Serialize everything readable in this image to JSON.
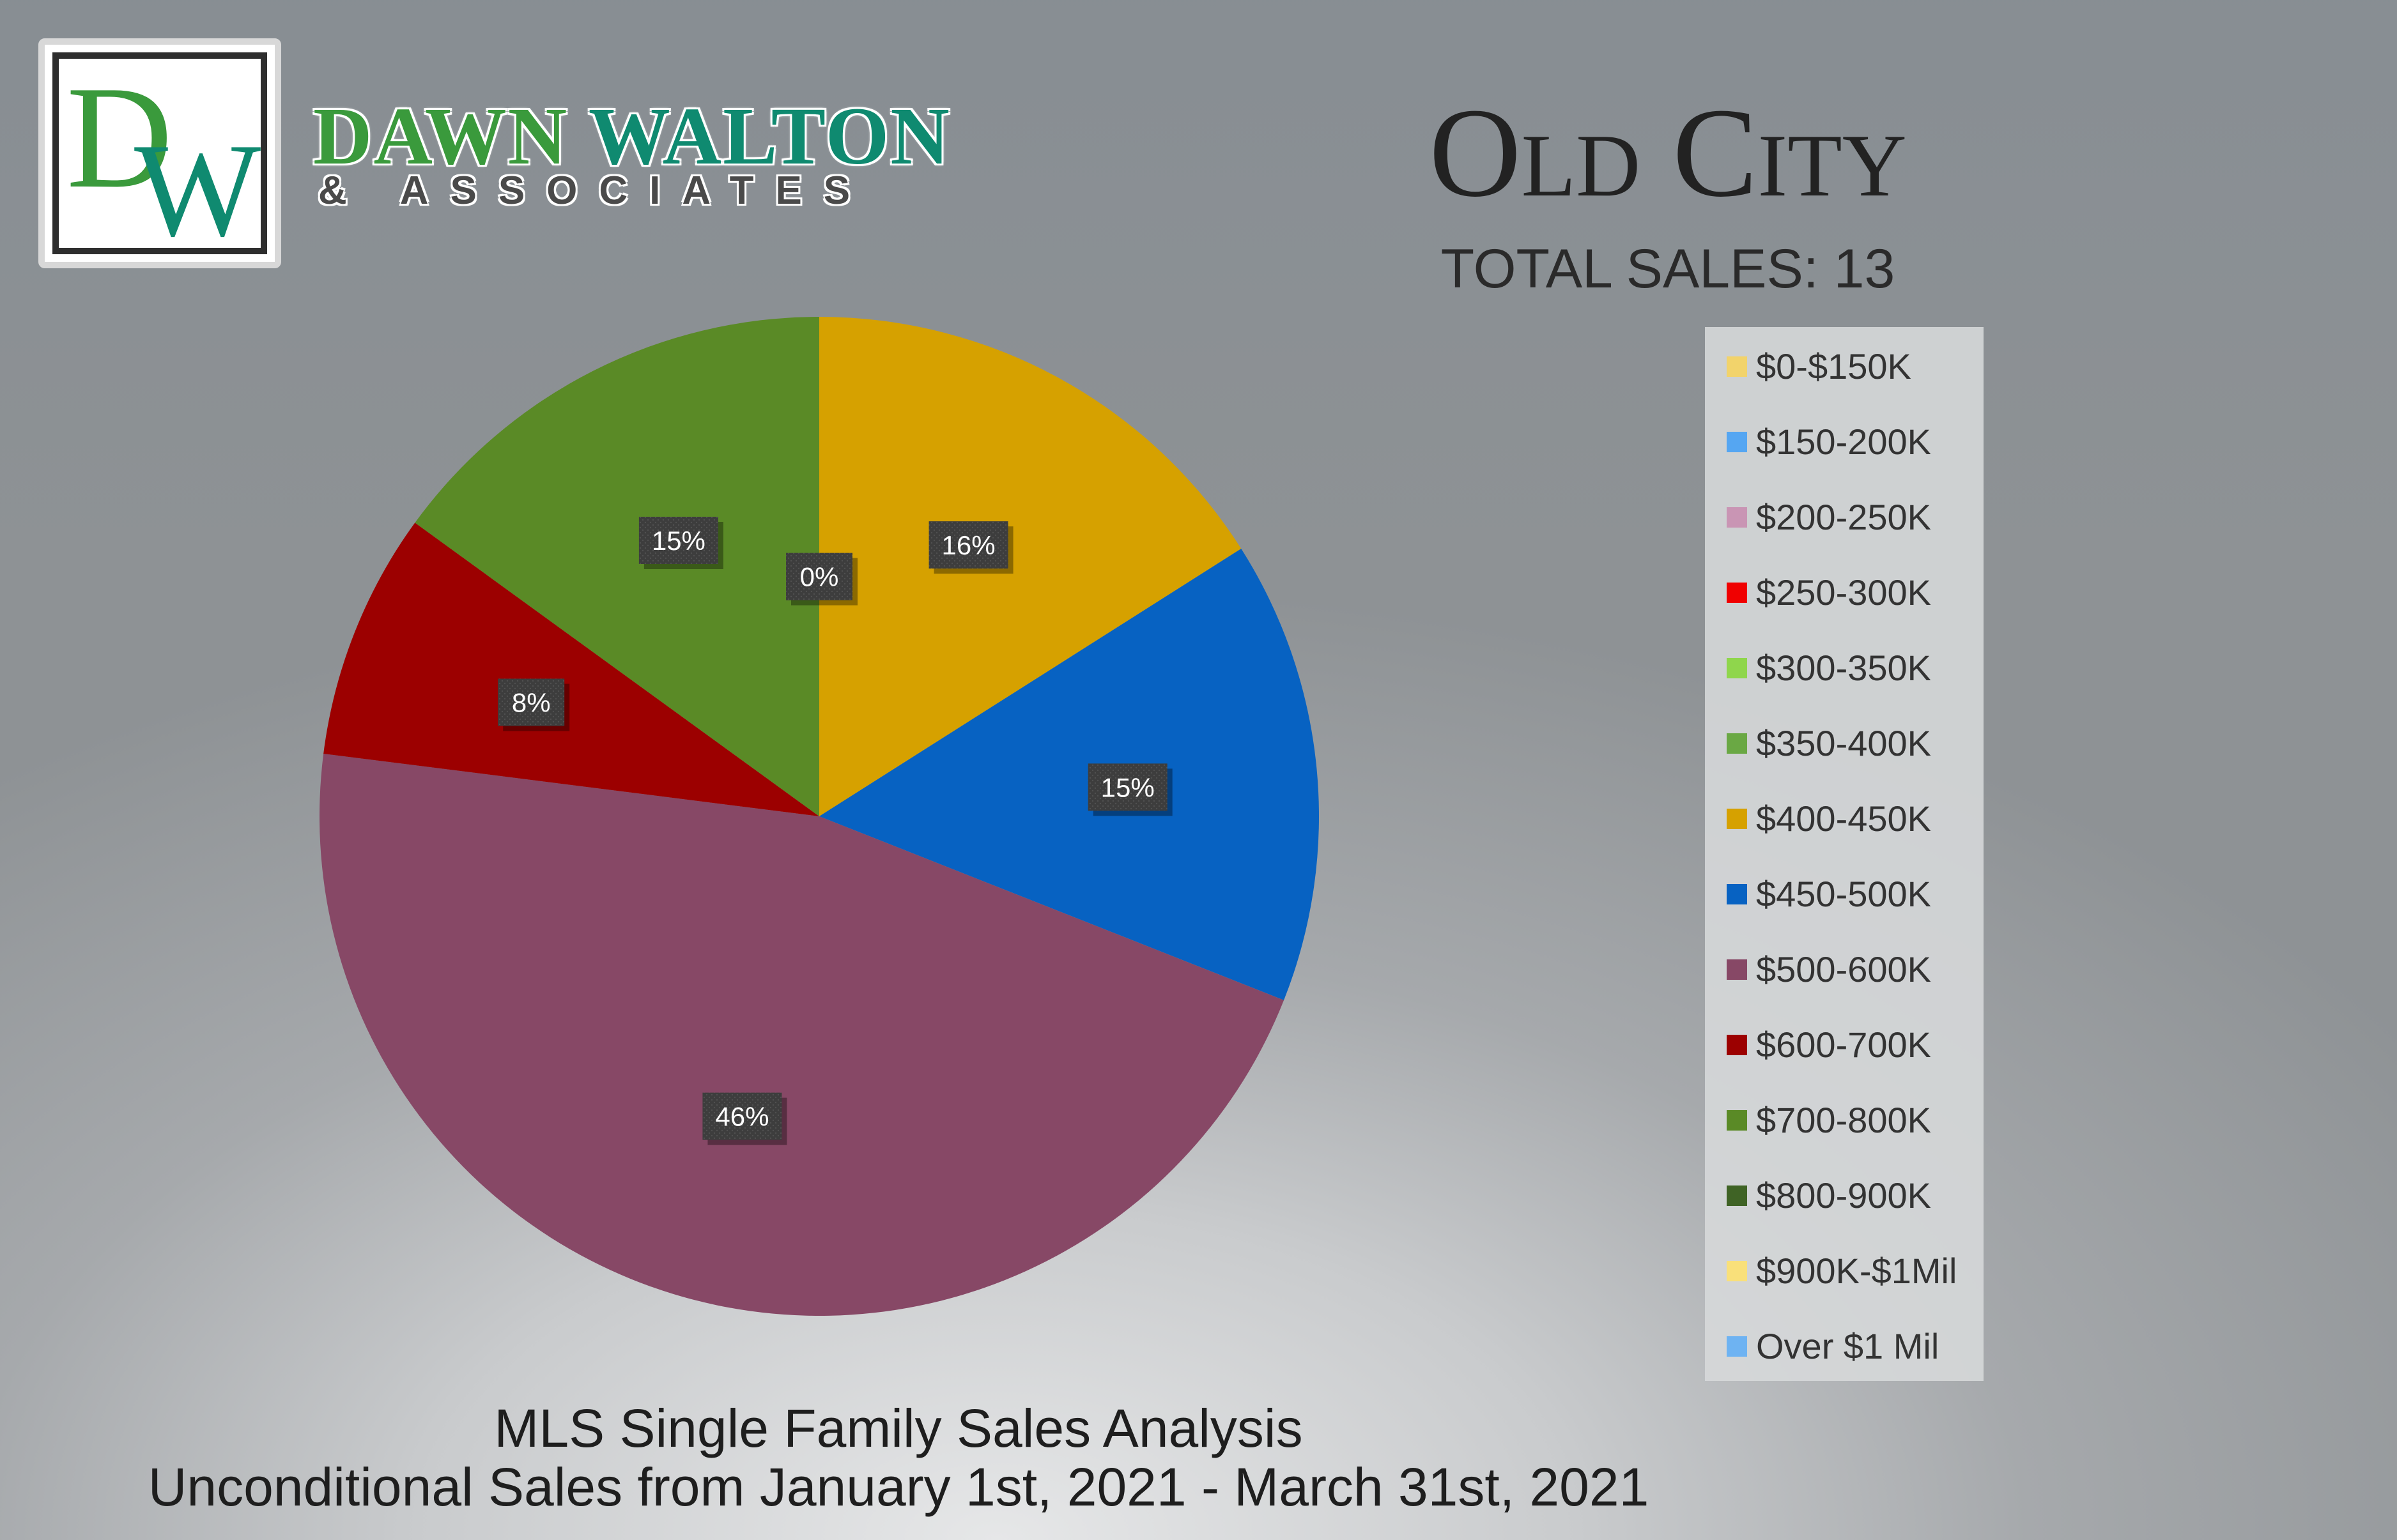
{
  "brand": {
    "logo_letters": "DW",
    "name_first": "DAWN",
    "name_last": "WALTON",
    "tagline": "& ASSOCIATES"
  },
  "header": {
    "title": "Old City",
    "total_sales": "TOTAL SALES: 13"
  },
  "footer": {
    "line1": "MLS Single Family Sales Analysis",
    "line2": "Unconditional Sales from January 1st, 2021 - March 31st, 2021"
  },
  "colors": {
    "brand_green": "#3a9a3c",
    "brand_teal": "#0f8a70"
  },
  "chart_data": {
    "type": "pie",
    "title": "",
    "legend_placement": "right",
    "slices": [
      {
        "label": "$400-450K",
        "value": 16,
        "display": "16%",
        "color": "#d6a100"
      },
      {
        "label": "$450-500K",
        "value": 15,
        "display": "15%",
        "color": "#0762c2"
      },
      {
        "label": "$500-600K",
        "value": 46,
        "display": "46%",
        "color": "#874866"
      },
      {
        "label": "$600-700K",
        "value": 8,
        "display": "8%",
        "color": "#9c0000"
      },
      {
        "label": "$700-800K",
        "value": 15,
        "display": "15%",
        "color": "#5a8a26"
      },
      {
        "label": "$0-$150K",
        "value": 0,
        "display": "0%",
        "color": "#f2d36b"
      }
    ],
    "legend": [
      {
        "label": "$0-$150K",
        "color": "#f2d36b"
      },
      {
        "label": "$150-200K",
        "color": "#55a6f2"
      },
      {
        "label": "$200-250K",
        "color": "#c995b4"
      },
      {
        "label": "$250-300K",
        "color": "#f00000"
      },
      {
        "label": "$300-350K",
        "color": "#8fd64c"
      },
      {
        "label": "$350-400K",
        "color": "#6aa844"
      },
      {
        "label": "$400-450K",
        "color": "#d6a100"
      },
      {
        "label": "$450-500K",
        "color": "#0762c2"
      },
      {
        "label": "$500-600K",
        "color": "#874866"
      },
      {
        "label": "$600-700K",
        "color": "#9c0000"
      },
      {
        "label": "$700-800K",
        "color": "#5a8a26"
      },
      {
        "label": "$800-900K",
        "color": "#3f6325"
      },
      {
        "label": "$900K-$1Mil",
        "color": "#f9e07a"
      },
      {
        "label": "Over $1 Mil",
        "color": "#6eb3f2"
      }
    ]
  }
}
